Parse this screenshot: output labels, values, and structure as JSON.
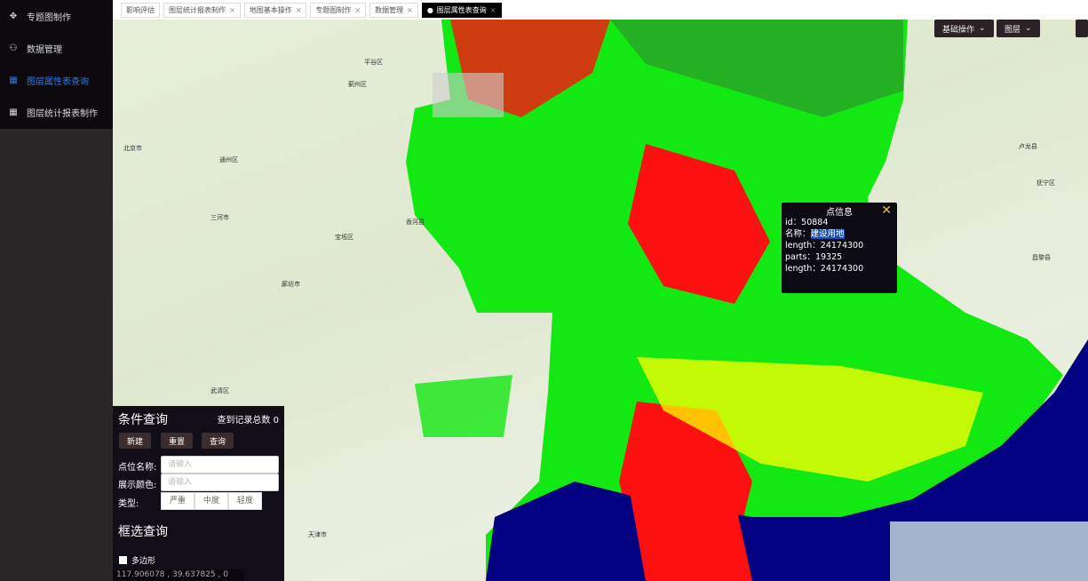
{
  "sidebar": {
    "items": [
      {
        "label": "专题图制作",
        "icon": "move-icon"
      },
      {
        "label": "数据管理",
        "icon": "user-icon"
      },
      {
        "label": "图层属性表查询",
        "icon": "table-icon",
        "active": true
      },
      {
        "label": "图层统计报表制作",
        "icon": "table-icon"
      }
    ]
  },
  "tabs": [
    {
      "label": "影响评估",
      "closable": false
    },
    {
      "label": "图层统计报表制作",
      "closable": true
    },
    {
      "label": "地图基本操作",
      "closable": true
    },
    {
      "label": "专题图制作",
      "closable": true
    },
    {
      "label": "数据管理",
      "closable": true
    },
    {
      "label": "图层属性表查询",
      "closable": true,
      "active": true
    }
  ],
  "toolbar": {
    "basic_ops": "基础操作",
    "layers": "图层"
  },
  "popup": {
    "title": "点信息",
    "rows": [
      {
        "key": "id：",
        "value": "50884"
      },
      {
        "key": "名称：",
        "value": "建设用地"
      },
      {
        "key": "length：",
        "value": "24174300"
      },
      {
        "key": "parts：",
        "value": "19325"
      },
      {
        "key": "length：",
        "value": "24174300"
      }
    ]
  },
  "query": {
    "title": "条件查询",
    "count_label": "查到记录总数",
    "count": "0",
    "buttons": {
      "new": "新建",
      "reset": "重置",
      "query": "查询"
    },
    "name_label": "点位名称:",
    "name_placeholder": "请输入",
    "color_label": "展示颜色:",
    "color_placeholder": "请输入",
    "type_label": "类型:",
    "types": [
      "严重",
      "中度",
      "轻度"
    ],
    "box_title": "框选查询",
    "polygon_label": "多边形"
  },
  "coords": "117.906078 ,  39.637825 ,  0",
  "map_labels": [
    "北京市",
    "通州区",
    "廊坊市",
    "天津市",
    "蓟州区",
    "平谷区",
    "三河市",
    "香河县",
    "宝坻区",
    "武清区",
    "卢龙县",
    "抚宁区",
    "昌黎县"
  ],
  "colors": {
    "accent": "#2d7be0",
    "severe": "#ff0000",
    "vegetation": "#00ee00",
    "moderate": "#ffff00",
    "sea": "#000080"
  }
}
